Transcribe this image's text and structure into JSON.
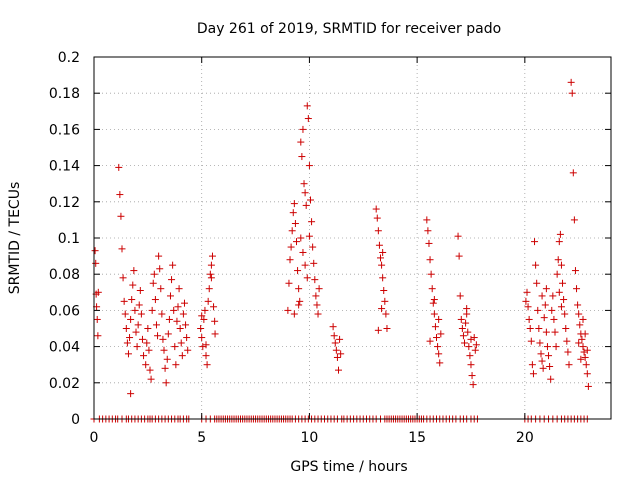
{
  "chart_data": {
    "type": "scatter",
    "title": "Day 261 of 2019, SRMTID for receiver pado",
    "xlabel": "GPS time / hours",
    "ylabel": "SRMTID / TECUs",
    "xlim": [
      0,
      24
    ],
    "ylim": [
      0,
      0.2
    ],
    "xticks": [
      0,
      5,
      10,
      15,
      20
    ],
    "xtick_labels": [
      "0",
      "5",
      "10",
      "15",
      "20"
    ],
    "yticks": [
      0,
      0.02,
      0.04,
      0.06,
      0.08,
      0.1,
      0.12,
      0.14,
      0.16,
      0.18,
      0.2
    ],
    "ytick_labels": [
      "0",
      "0.02",
      "0.04",
      "0.06",
      "0.08",
      "0.1",
      "0.12",
      "0.14",
      "0.16",
      "0.18",
      "0.2"
    ],
    "grid": true,
    "marker": "+",
    "marker_color": "#cc0000",
    "series": [
      {
        "name": "SRMTID",
        "points": [
          [
            0.05,
            0.093
          ],
          [
            0.08,
            0.086
          ],
          [
            0.1,
            0.069
          ],
          [
            0.12,
            0.062
          ],
          [
            0.15,
            0.055
          ],
          [
            0.18,
            0.046
          ],
          [
            0.2,
            0.07
          ],
          [
            1.15,
            0.139
          ],
          [
            1.2,
            0.124
          ],
          [
            1.25,
            0.112
          ],
          [
            1.3,
            0.094
          ],
          [
            1.35,
            0.078
          ],
          [
            1.4,
            0.065
          ],
          [
            1.45,
            0.058
          ],
          [
            1.5,
            0.05
          ],
          [
            1.55,
            0.042
          ],
          [
            1.6,
            0.036
          ],
          [
            1.65,
            0.045
          ],
          [
            1.7,
            0.055
          ],
          [
            1.75,
            0.066
          ],
          [
            1.8,
            0.074
          ],
          [
            1.85,
            0.082
          ],
          [
            1.9,
            0.06
          ],
          [
            1.95,
            0.048
          ],
          [
            2.0,
            0.04
          ],
          [
            1.7,
            0.014
          ],
          [
            2.05,
            0.052
          ],
          [
            2.1,
            0.063
          ],
          [
            2.15,
            0.071
          ],
          [
            2.2,
            0.058
          ],
          [
            2.25,
            0.044
          ],
          [
            2.3,
            0.035
          ],
          [
            2.4,
            0.03
          ],
          [
            2.45,
            0.042
          ],
          [
            2.5,
            0.05
          ],
          [
            2.55,
            0.038
          ],
          [
            2.6,
            0.027
          ],
          [
            2.65,
            0.022
          ],
          [
            2.7,
            0.06
          ],
          [
            2.75,
            0.075
          ],
          [
            2.8,
            0.08
          ],
          [
            2.85,
            0.066
          ],
          [
            2.9,
            0.052
          ],
          [
            2.95,
            0.046
          ],
          [
            3.0,
            0.09
          ],
          [
            3.05,
            0.083
          ],
          [
            3.1,
            0.072
          ],
          [
            3.15,
            0.058
          ],
          [
            3.2,
            0.044
          ],
          [
            3.25,
            0.038
          ],
          [
            3.3,
            0.028
          ],
          [
            3.35,
            0.02
          ],
          [
            3.4,
            0.033
          ],
          [
            3.45,
            0.047
          ],
          [
            3.5,
            0.055
          ],
          [
            3.55,
            0.068
          ],
          [
            3.6,
            0.077
          ],
          [
            3.65,
            0.085
          ],
          [
            3.7,
            0.06
          ],
          [
            3.75,
            0.04
          ],
          [
            3.8,
            0.03
          ],
          [
            3.85,
            0.054
          ],
          [
            3.9,
            0.062
          ],
          [
            3.95,
            0.072
          ],
          [
            4.0,
            0.05
          ],
          [
            4.05,
            0.042
          ],
          [
            4.1,
            0.035
          ],
          [
            4.15,
            0.058
          ],
          [
            4.2,
            0.064
          ],
          [
            4.25,
            0.052
          ],
          [
            4.3,
            0.045
          ],
          [
            4.35,
            0.038
          ],
          [
            4.95,
            0.05
          ],
          [
            5.0,
            0.045
          ],
          [
            5.05,
            0.04
          ],
          [
            5.1,
            0.055
          ],
          [
            5.15,
            0.06
          ],
          [
            5.2,
            0.035
          ],
          [
            5.25,
            0.03
          ],
          [
            5.3,
            0.065
          ],
          [
            5.35,
            0.072
          ],
          [
            5.4,
            0.08
          ],
          [
            5.45,
            0.085
          ],
          [
            5.5,
            0.09
          ],
          [
            5.55,
            0.062
          ],
          [
            5.6,
            0.054
          ],
          [
            5.62,
            0.047
          ],
          [
            5.0,
            0.057
          ],
          [
            5.2,
            0.041
          ],
          [
            5.45,
            0.078
          ],
          [
            9.0,
            0.06
          ],
          [
            9.05,
            0.075
          ],
          [
            9.1,
            0.088
          ],
          [
            9.15,
            0.095
          ],
          [
            9.2,
            0.104
          ],
          [
            9.25,
            0.114
          ],
          [
            9.3,
            0.119
          ],
          [
            9.35,
            0.108
          ],
          [
            9.4,
            0.098
          ],
          [
            9.45,
            0.082
          ],
          [
            9.5,
            0.072
          ],
          [
            9.55,
            0.065
          ],
          [
            9.6,
            0.153
          ],
          [
            9.65,
            0.145
          ],
          [
            9.7,
            0.16
          ],
          [
            9.75,
            0.13
          ],
          [
            9.8,
            0.125
          ],
          [
            9.85,
            0.118
          ],
          [
            9.9,
            0.173
          ],
          [
            9.95,
            0.166
          ],
          [
            10.0,
            0.14
          ],
          [
            10.05,
            0.121
          ],
          [
            10.1,
            0.109
          ],
          [
            10.15,
            0.095
          ],
          [
            10.2,
            0.086
          ],
          [
            10.25,
            0.077
          ],
          [
            10.3,
            0.068
          ],
          [
            10.35,
            0.063
          ],
          [
            10.4,
            0.058
          ],
          [
            10.45,
            0.072
          ],
          [
            9.6,
            0.1
          ],
          [
            9.7,
            0.092
          ],
          [
            9.8,
            0.085
          ],
          [
            9.9,
            0.078
          ],
          [
            10.0,
            0.101
          ],
          [
            9.3,
            0.058
          ],
          [
            9.5,
            0.063
          ],
          [
            11.1,
            0.051
          ],
          [
            11.15,
            0.046
          ],
          [
            11.2,
            0.042
          ],
          [
            11.25,
            0.038
          ],
          [
            11.3,
            0.034
          ],
          [
            11.35,
            0.027
          ],
          [
            11.4,
            0.044
          ],
          [
            11.45,
            0.036
          ],
          [
            13.1,
            0.116
          ],
          [
            13.15,
            0.111
          ],
          [
            13.2,
            0.104
          ],
          [
            13.25,
            0.096
          ],
          [
            13.3,
            0.089
          ],
          [
            13.35,
            0.085
          ],
          [
            13.4,
            0.078
          ],
          [
            13.45,
            0.071
          ],
          [
            13.5,
            0.065
          ],
          [
            13.55,
            0.058
          ],
          [
            13.6,
            0.05
          ],
          [
            13.2,
            0.049
          ],
          [
            13.4,
            0.092
          ],
          [
            13.35,
            0.061
          ],
          [
            15.45,
            0.11
          ],
          [
            15.5,
            0.104
          ],
          [
            15.55,
            0.097
          ],
          [
            15.6,
            0.088
          ],
          [
            15.65,
            0.08
          ],
          [
            15.7,
            0.072
          ],
          [
            15.75,
            0.064
          ],
          [
            15.8,
            0.058
          ],
          [
            15.85,
            0.051
          ],
          [
            15.9,
            0.045
          ],
          [
            15.95,
            0.04
          ],
          [
            16.0,
            0.036
          ],
          [
            16.05,
            0.031
          ],
          [
            15.6,
            0.043
          ],
          [
            15.8,
            0.066
          ],
          [
            16.0,
            0.055
          ],
          [
            16.1,
            0.047
          ],
          [
            16.9,
            0.101
          ],
          [
            16.95,
            0.09
          ],
          [
            17.0,
            0.068
          ],
          [
            17.05,
            0.055
          ],
          [
            17.1,
            0.05
          ],
          [
            17.15,
            0.046
          ],
          [
            17.2,
            0.042
          ],
          [
            17.25,
            0.053
          ],
          [
            17.3,
            0.058
          ],
          [
            17.35,
            0.048
          ],
          [
            17.4,
            0.04
          ],
          [
            17.45,
            0.035
          ],
          [
            17.5,
            0.03
          ],
          [
            17.55,
            0.024
          ],
          [
            17.6,
            0.019
          ],
          [
            17.65,
            0.045
          ],
          [
            17.7,
            0.038
          ],
          [
            17.75,
            0.041
          ],
          [
            17.3,
            0.061
          ],
          [
            17.5,
            0.044
          ],
          [
            20.05,
            0.065
          ],
          [
            20.1,
            0.07
          ],
          [
            20.15,
            0.062
          ],
          [
            20.2,
            0.055
          ],
          [
            20.25,
            0.05
          ],
          [
            20.3,
            0.043
          ],
          [
            20.35,
            0.03
          ],
          [
            20.4,
            0.025
          ],
          [
            20.45,
            0.098
          ],
          [
            20.5,
            0.085
          ],
          [
            20.55,
            0.075
          ],
          [
            20.6,
            0.06
          ],
          [
            20.65,
            0.05
          ],
          [
            20.7,
            0.042
          ],
          [
            20.75,
            0.036
          ],
          [
            20.8,
            0.032
          ],
          [
            20.85,
            0.028
          ],
          [
            20.9,
            0.056
          ],
          [
            20.95,
            0.063
          ],
          [
            21.0,
            0.048
          ],
          [
            21.05,
            0.04
          ],
          [
            21.1,
            0.035
          ],
          [
            21.15,
            0.029
          ],
          [
            21.2,
            0.022
          ],
          [
            21.25,
            0.06
          ],
          [
            21.3,
            0.068
          ],
          [
            21.35,
            0.055
          ],
          [
            21.4,
            0.048
          ],
          [
            21.45,
            0.04
          ],
          [
            21.5,
            0.08
          ],
          [
            21.55,
            0.088
          ],
          [
            21.6,
            0.098
          ],
          [
            21.65,
            0.102
          ],
          [
            21.7,
            0.085
          ],
          [
            21.75,
            0.075
          ],
          [
            21.8,
            0.066
          ],
          [
            21.85,
            0.058
          ],
          [
            21.9,
            0.05
          ],
          [
            21.95,
            0.043
          ],
          [
            22.0,
            0.037
          ],
          [
            22.05,
            0.03
          ],
          [
            21.6,
            0.07
          ],
          [
            21.7,
            0.062
          ],
          [
            21.0,
            0.072
          ],
          [
            20.8,
            0.068
          ],
          [
            22.15,
            0.186
          ],
          [
            22.2,
            0.18
          ],
          [
            22.25,
            0.136
          ],
          [
            22.3,
            0.11
          ],
          [
            22.35,
            0.082
          ],
          [
            22.4,
            0.072
          ],
          [
            22.45,
            0.063
          ],
          [
            22.5,
            0.058
          ],
          [
            22.55,
            0.052
          ],
          [
            22.6,
            0.047
          ],
          [
            22.65,
            0.044
          ],
          [
            22.7,
            0.04
          ],
          [
            22.75,
            0.037
          ],
          [
            22.8,
            0.034
          ],
          [
            22.85,
            0.03
          ],
          [
            22.9,
            0.025
          ],
          [
            22.95,
            0.018
          ],
          [
            22.5,
            0.042
          ],
          [
            22.7,
            0.055
          ],
          [
            22.8,
            0.047
          ],
          [
            22.6,
            0.033
          ],
          [
            22.9,
            0.038
          ]
        ],
        "zero_x": [
          0.0,
          0.25,
          0.4,
          0.55,
          0.7,
          0.85,
          1.0,
          1.1,
          1.3,
          1.5,
          1.6,
          1.75,
          1.9,
          2.05,
          2.2,
          2.35,
          2.5,
          2.6,
          2.7,
          2.85,
          3.0,
          3.15,
          3.3,
          3.45,
          3.6,
          3.75,
          3.9,
          4.0,
          4.15,
          4.3,
          4.4,
          5.0,
          5.2,
          5.4,
          5.6,
          5.7,
          5.8,
          5.9,
          6.0,
          6.1,
          6.2,
          6.3,
          6.4,
          6.5,
          6.6,
          6.7,
          6.8,
          6.9,
          7.0,
          7.1,
          7.2,
          7.3,
          7.4,
          7.5,
          7.6,
          7.7,
          7.8,
          7.9,
          8.0,
          8.1,
          8.2,
          8.3,
          8.4,
          8.5,
          8.6,
          8.7,
          8.8,
          8.9,
          9.0,
          9.1,
          9.2,
          9.35,
          9.5,
          9.65,
          9.8,
          9.95,
          10.1,
          10.25,
          10.4,
          10.55,
          10.7,
          10.85,
          11.0,
          11.15,
          11.3,
          11.5,
          11.6,
          11.75,
          11.9,
          12.05,
          12.2,
          12.35,
          12.5,
          12.65,
          12.8,
          12.95,
          13.1,
          13.3,
          13.5,
          13.6,
          13.7,
          13.8,
          13.9,
          14.0,
          14.1,
          14.2,
          14.3,
          14.4,
          14.5,
          14.6,
          14.7,
          14.8,
          14.9,
          15.0,
          15.1,
          15.2,
          15.3,
          15.45,
          15.6,
          15.75,
          15.9,
          16.05,
          16.2,
          16.35,
          16.5,
          16.65,
          16.8,
          17.0,
          17.15,
          17.3,
          17.5,
          17.65,
          17.8,
          20.0,
          20.15,
          20.3,
          20.5,
          20.7,
          20.9,
          21.1,
          21.3,
          21.5,
          21.7,
          21.85,
          22.0,
          22.15,
          22.3,
          22.45,
          22.6,
          22.75,
          22.9
        ]
      }
    ]
  }
}
